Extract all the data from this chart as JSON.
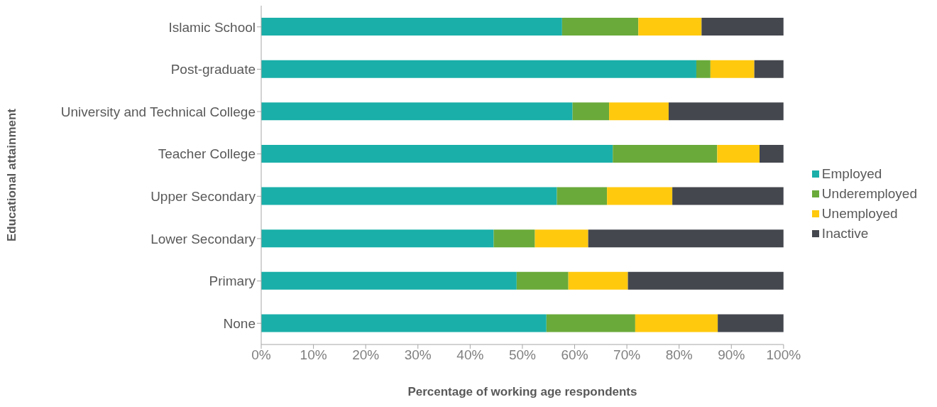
{
  "chart_data": {
    "type": "bar",
    "orientation": "horizontal",
    "stacked": true,
    "xlabel": "Percentage of working age respondents",
    "ylabel": "Educational attainment",
    "categories": [
      "Islamic School",
      "Post-graduate",
      "University and Technical College",
      "Teacher College",
      "Upper Secondary",
      "Lower Secondary",
      "Primary",
      "None"
    ],
    "series": [
      {
        "name": "Employed",
        "color": "#1aafa9",
        "values": [
          57.6,
          83.3,
          59.6,
          67.3,
          56.6,
          44.5,
          48.9,
          54.6
        ]
      },
      {
        "name": "Underemployed",
        "color": "#6aaa3a",
        "values": [
          14.6,
          2.7,
          7.0,
          20.0,
          9.6,
          7.9,
          9.9,
          17.0
        ]
      },
      {
        "name": "Unemployed",
        "color": "#ffc90e",
        "values": [
          12.1,
          8.4,
          11.4,
          8.1,
          12.5,
          10.2,
          11.4,
          15.8
        ]
      },
      {
        "name": "Inactive",
        "color": "#44474e",
        "values": [
          15.7,
          5.6,
          22.0,
          4.6,
          21.3,
          37.4,
          29.8,
          12.6
        ]
      }
    ],
    "xlim": [
      0,
      100
    ],
    "xticks": [
      {
        "value": 0,
        "label": "0%"
      },
      {
        "value": 10,
        "label": "10%"
      },
      {
        "value": 20,
        "label": "20%"
      },
      {
        "value": 30,
        "label": "30%"
      },
      {
        "value": 40,
        "label": "40%"
      },
      {
        "value": 50,
        "label": "50%"
      },
      {
        "value": 60,
        "label": "60%"
      },
      {
        "value": 70,
        "label": "70%"
      },
      {
        "value": 80,
        "label": "80%"
      },
      {
        "value": 90,
        "label": "90%"
      },
      {
        "value": 100,
        "label": "100%"
      }
    ],
    "grid": false,
    "legend": "right"
  }
}
